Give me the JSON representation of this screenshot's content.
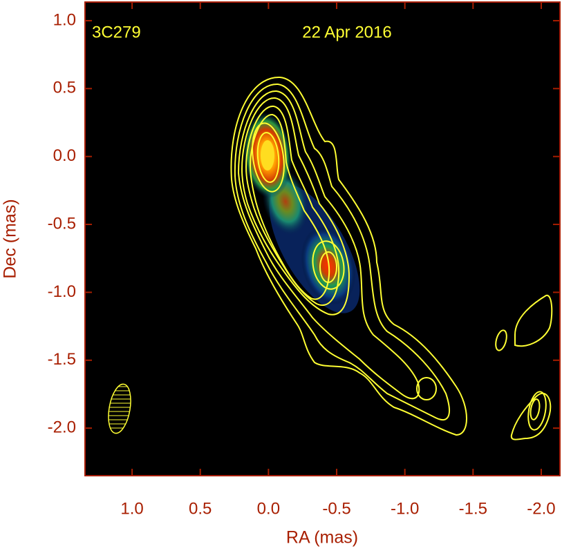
{
  "chart_data": {
    "type": "image",
    "annotations": [
      "3C279",
      "22 Apr 2016"
    ],
    "x_label": "RA (mas)",
    "y_label": "Dec (mas)",
    "xlim": [
      1.345,
      -2.137
    ],
    "ylim": [
      -2.35,
      1.137
    ],
    "xticks": [
      {
        "value": 1,
        "label": "1.0"
      },
      0.5,
      {
        "value": 0,
        "label": "0.0"
      },
      -0.5,
      {
        "value": -1,
        "label": "-1.0"
      },
      -1.5,
      {
        "value": -2,
        "label": "-2.0"
      }
    ],
    "yticks": [
      {
        "value": 1,
        "label": "1.0"
      },
      0.5,
      {
        "value": 0,
        "label": "0.0"
      },
      -0.5,
      {
        "value": -1,
        "label": "-1.0"
      },
      -1.5,
      {
        "value": -2,
        "label": "-2.0"
      }
    ],
    "axis_color": "#a81e00",
    "background": "#000000"
  }
}
